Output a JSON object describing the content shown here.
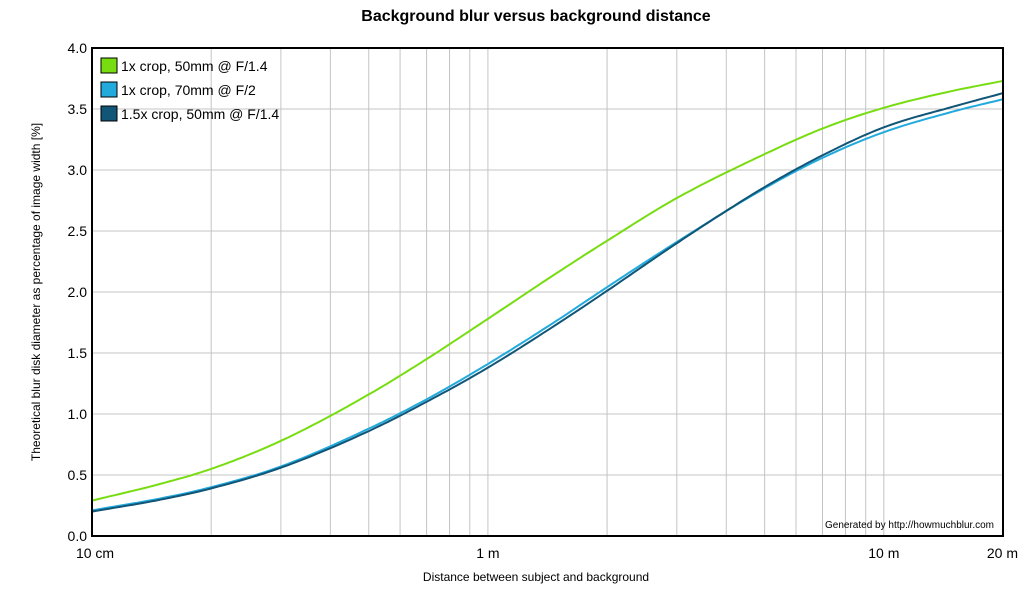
{
  "chart_data": {
    "type": "line",
    "title": "Background blur versus background distance",
    "xlabel": "Distance between subject and background",
    "ylabel": "Theoretical blur disk diameter as percentage of image width [%]",
    "x_scale": "log",
    "xlim": [
      0.1,
      20
    ],
    "ylim": [
      0,
      4
    ],
    "x_ticks": [
      {
        "value": 0.1,
        "label": "10 cm"
      },
      {
        "value": 1,
        "label": "1 m"
      },
      {
        "value": 10,
        "label": "10 m"
      },
      {
        "value": 20,
        "label": "20 m"
      }
    ],
    "y_ticks": [
      "0.0",
      "0.5",
      "1.0",
      "1.5",
      "2.0",
      "2.5",
      "3.0",
      "3.5",
      "4.0"
    ],
    "grid": true,
    "legend": "top-left",
    "credit": "Generated by http://howmuchblur.com",
    "series": [
      {
        "name": "1x crop, 50mm @ F/1.4",
        "color": "#77dd11",
        "x": [
          0.1,
          0.15,
          0.2,
          0.3,
          0.5,
          0.7,
          1.0,
          1.5,
          2.0,
          3.0,
          5.0,
          7.0,
          10.0,
          15.0,
          20.0
        ],
        "y": [
          0.29,
          0.43,
          0.55,
          0.78,
          1.16,
          1.45,
          1.78,
          2.16,
          2.42,
          2.77,
          3.13,
          3.34,
          3.51,
          3.65,
          3.73
        ]
      },
      {
        "name": "1x crop, 70mm @ F/2",
        "color": "#22aadd",
        "x": [
          0.1,
          0.15,
          0.2,
          0.3,
          0.5,
          0.7,
          1.0,
          1.5,
          2.0,
          3.0,
          5.0,
          7.0,
          10.0,
          15.0,
          20.0
        ],
        "y": [
          0.21,
          0.31,
          0.4,
          0.57,
          0.88,
          1.12,
          1.41,
          1.77,
          2.04,
          2.41,
          2.85,
          3.1,
          3.31,
          3.48,
          3.58
        ]
      },
      {
        "name": "1.5x crop, 50mm @ F/1.4",
        "color": "#115577",
        "x": [
          0.1,
          0.15,
          0.2,
          0.3,
          0.5,
          0.7,
          1.0,
          1.5,
          2.0,
          3.0,
          5.0,
          7.0,
          10.0,
          15.0,
          20.0
        ],
        "y": [
          0.2,
          0.3,
          0.39,
          0.56,
          0.86,
          1.1,
          1.38,
          1.74,
          2.01,
          2.4,
          2.86,
          3.12,
          3.35,
          3.52,
          3.63
        ]
      }
    ]
  }
}
